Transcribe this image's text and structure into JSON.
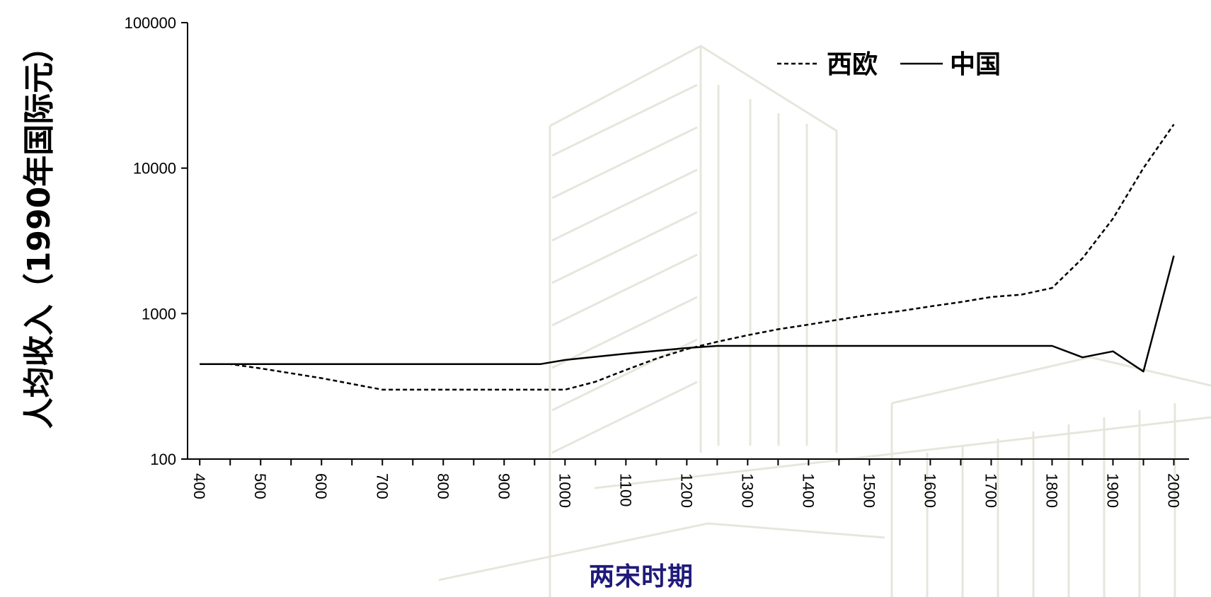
{
  "chart_data": {
    "type": "line",
    "title": "",
    "xlabel": "",
    "ylabel": "人均收入（1990年国际元）",
    "yscale": "log",
    "ylim": [
      100,
      100000
    ],
    "xlim": [
      380,
      2025
    ],
    "x_ticks": [
      400,
      500,
      600,
      700,
      800,
      900,
      1000,
      1100,
      1200,
      1300,
      1400,
      1500,
      1600,
      1700,
      1800,
      1900,
      2000
    ],
    "y_ticks": [
      100,
      1000,
      10000,
      100000
    ],
    "legend_position": "top-right",
    "grid": false,
    "series": [
      {
        "name": "西欧",
        "style": "dashed",
        "color": "#000000",
        "x": [
          400,
          450,
          500,
          600,
          700,
          800,
          900,
          1000,
          1050,
          1100,
          1150,
          1200,
          1250,
          1300,
          1350,
          1400,
          1450,
          1500,
          1550,
          1600,
          1650,
          1700,
          1750,
          1800,
          1850,
          1900,
          1950,
          2000
        ],
        "y": [
          450,
          450,
          420,
          360,
          300,
          300,
          300,
          300,
          340,
          410,
          490,
          570,
          640,
          710,
          780,
          840,
          910,
          980,
          1040,
          1120,
          1200,
          1300,
          1350,
          1500,
          2400,
          4500,
          10000,
          20000
        ]
      },
      {
        "name": "中国",
        "style": "solid",
        "color": "#000000",
        "x": [
          400,
          500,
          600,
          700,
          800,
          900,
          960,
          1000,
          1100,
          1200,
          1250,
          1300,
          1400,
          1500,
          1600,
          1700,
          1800,
          1850,
          1900,
          1950,
          2000
        ],
        "y": [
          450,
          450,
          450,
          450,
          450,
          450,
          450,
          480,
          530,
          580,
          600,
          600,
          600,
          600,
          600,
          600,
          600,
          500,
          550,
          400,
          2500
        ]
      }
    ]
  },
  "footer": {
    "label": "两宋时期"
  }
}
